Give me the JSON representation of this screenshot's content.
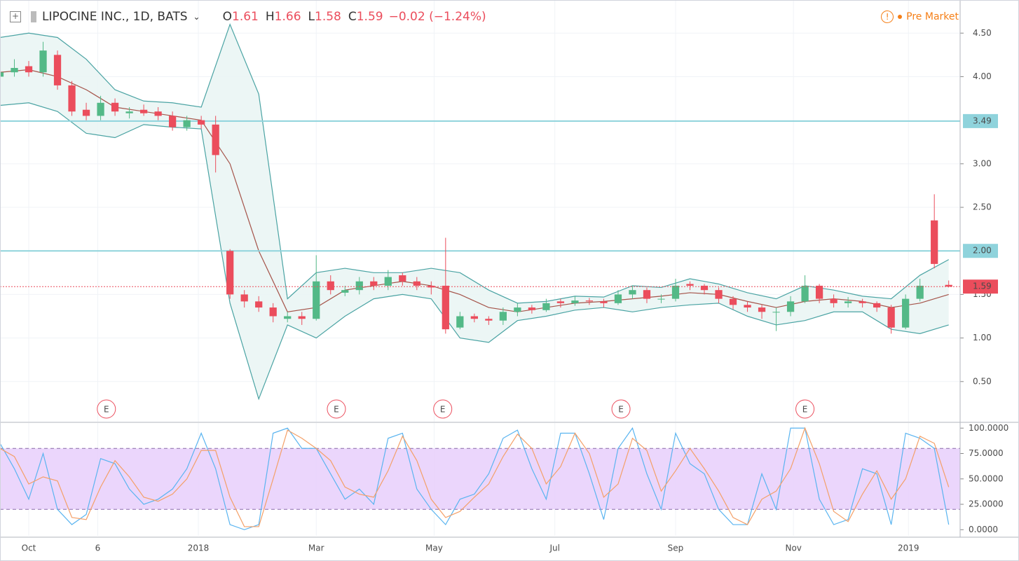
{
  "chart_data": [
    {
      "type": "candlestick",
      "title": "LIPOCINE INC., 1D, BATS",
      "ohlc": [
        {
          "label": "O",
          "value": 1.61
        },
        {
          "label": "H",
          "value": 1.66
        },
        {
          "label": "L",
          "value": 1.58
        },
        {
          "label": "C",
          "value": 1.59
        }
      ],
      "change": "−0.02 (−1.24%)",
      "session": "Pre Market",
      "up_color": "#53b987",
      "down_color": "#eb4d5c",
      "x": [
        0,
        5,
        10,
        15,
        20,
        25,
        30,
        35,
        40,
        45,
        50,
        55,
        60,
        65,
        70,
        75,
        80,
        85,
        90,
        95,
        100,
        105,
        110,
        115,
        120,
        125,
        130,
        135,
        140,
        145,
        150,
        155,
        160,
        165,
        170,
        175,
        180,
        185,
        190,
        195,
        200,
        205,
        210,
        215,
        220,
        225,
        230,
        235,
        240,
        245,
        250,
        255,
        260,
        265,
        270,
        275,
        280,
        285,
        290,
        295,
        300,
        305,
        310,
        315,
        320,
        325,
        330
      ],
      "open": [
        4.0,
        4.05,
        4.12,
        4.05,
        4.25,
        3.9,
        3.62,
        3.55,
        3.7,
        3.58,
        3.62,
        3.6,
        3.55,
        3.42,
        3.5,
        3.45,
        2.0,
        1.5,
        1.42,
        1.35,
        1.22,
        1.25,
        1.22,
        1.65,
        1.52,
        1.55,
        1.65,
        1.6,
        1.72,
        1.65,
        1.6,
        1.6,
        1.12,
        1.25,
        1.22,
        1.2,
        1.3,
        1.35,
        1.32,
        1.42,
        1.4,
        1.43,
        1.42,
        1.4,
        1.5,
        1.55,
        1.45,
        1.45,
        1.62,
        1.6,
        1.55,
        1.45,
        1.38,
        1.35,
        1.3,
        1.3,
        1.42,
        1.6,
        1.45,
        1.4,
        1.42,
        1.4,
        1.35,
        1.12,
        1.45,
        2.35,
        1.61
      ],
      "high": [
        4.15,
        4.2,
        4.18,
        4.4,
        4.3,
        3.95,
        3.7,
        3.78,
        3.75,
        3.65,
        3.68,
        3.65,
        3.6,
        3.55,
        3.55,
        3.55,
        2.02,
        1.55,
        1.48,
        1.4,
        1.3,
        1.3,
        1.95,
        1.72,
        1.6,
        1.7,
        1.7,
        1.78,
        1.75,
        1.7,
        1.65,
        2.15,
        1.3,
        1.28,
        1.25,
        1.35,
        1.4,
        1.38,
        1.45,
        1.45,
        1.48,
        1.46,
        1.45,
        1.55,
        1.6,
        1.58,
        1.5,
        1.68,
        1.65,
        1.62,
        1.58,
        1.48,
        1.42,
        1.38,
        1.35,
        1.48,
        1.72,
        1.62,
        1.5,
        1.47,
        1.45,
        1.42,
        1.38,
        1.5,
        1.68,
        2.65,
        1.66
      ],
      "low": [
        3.95,
        4.0,
        4.0,
        4.0,
        3.85,
        3.55,
        3.5,
        3.5,
        3.55,
        3.52,
        3.55,
        3.5,
        3.38,
        3.38,
        3.4,
        2.9,
        1.45,
        1.35,
        1.3,
        1.18,
        1.18,
        1.15,
        1.2,
        1.5,
        1.48,
        1.5,
        1.55,
        1.55,
        1.6,
        1.55,
        1.5,
        1.05,
        1.1,
        1.18,
        1.15,
        1.15,
        1.25,
        1.28,
        1.3,
        1.35,
        1.37,
        1.38,
        1.35,
        1.38,
        1.45,
        1.4,
        1.4,
        1.42,
        1.55,
        1.5,
        1.4,
        1.33,
        1.3,
        1.22,
        1.08,
        1.25,
        1.4,
        1.4,
        1.35,
        1.35,
        1.35,
        1.3,
        1.05,
        1.1,
        1.42,
        1.8,
        1.58
      ],
      "close": [
        4.05,
        4.1,
        4.05,
        4.3,
        3.9,
        3.6,
        3.55,
        3.7,
        3.6,
        3.6,
        3.58,
        3.55,
        3.42,
        3.5,
        3.45,
        3.1,
        1.5,
        1.42,
        1.35,
        1.25,
        1.25,
        1.22,
        1.65,
        1.55,
        1.55,
        1.65,
        1.6,
        1.7,
        1.65,
        1.6,
        1.58,
        1.1,
        1.25,
        1.22,
        1.2,
        1.3,
        1.35,
        1.32,
        1.4,
        1.4,
        1.43,
        1.42,
        1.4,
        1.5,
        1.55,
        1.45,
        1.45,
        1.6,
        1.6,
        1.55,
        1.45,
        1.38,
        1.35,
        1.3,
        1.3,
        1.42,
        1.6,
        1.45,
        1.4,
        1.42,
        1.4,
        1.35,
        1.12,
        1.45,
        1.6,
        1.85,
        1.59
      ],
      "bollinger": {
        "color": "#4aa3a3",
        "middle_color": "#a5544a",
        "fill": "#eaf5f4",
        "x": [
          0,
          10,
          20,
          30,
          40,
          50,
          60,
          70,
          80,
          90,
          100,
          110,
          120,
          130,
          140,
          150,
          160,
          170,
          180,
          190,
          200,
          210,
          220,
          230,
          240,
          250,
          260,
          270,
          280,
          290,
          300,
          310,
          320,
          330
        ],
        "upper": [
          4.45,
          4.5,
          4.45,
          4.2,
          3.85,
          3.72,
          3.7,
          3.65,
          4.6,
          3.8,
          1.45,
          1.75,
          1.8,
          1.75,
          1.75,
          1.8,
          1.75,
          1.55,
          1.4,
          1.42,
          1.48,
          1.47,
          1.6,
          1.58,
          1.68,
          1.62,
          1.52,
          1.45,
          1.6,
          1.55,
          1.48,
          1.45,
          1.72,
          1.9
        ],
        "middle": [
          4.05,
          4.08,
          4.0,
          3.85,
          3.65,
          3.6,
          3.55,
          3.5,
          3.0,
          2.0,
          1.3,
          1.35,
          1.55,
          1.6,
          1.65,
          1.6,
          1.5,
          1.35,
          1.3,
          1.35,
          1.4,
          1.42,
          1.45,
          1.48,
          1.52,
          1.5,
          1.42,
          1.35,
          1.42,
          1.45,
          1.42,
          1.35,
          1.4,
          1.5
        ],
        "lower": [
          3.67,
          3.7,
          3.6,
          3.35,
          3.3,
          3.45,
          3.42,
          3.4,
          1.4,
          0.3,
          1.15,
          1.0,
          1.25,
          1.45,
          1.5,
          1.45,
          1.0,
          0.95,
          1.2,
          1.25,
          1.32,
          1.35,
          1.3,
          1.35,
          1.38,
          1.4,
          1.25,
          1.15,
          1.2,
          1.3,
          1.3,
          1.1,
          1.05,
          1.15
        ]
      },
      "hlines": [
        {
          "value": 3.49,
          "label": "3.49",
          "color": "#8fd3dc"
        },
        {
          "value": 2.0,
          "label": "2.00",
          "color": "#8fd3dc"
        }
      ],
      "last": {
        "value": 1.59,
        "label": "1.59",
        "color": "#eb4d5c"
      },
      "events": [
        {
          "x": 37,
          "label": "E"
        },
        {
          "x": 117,
          "label": "E"
        },
        {
          "x": 154,
          "label": "E"
        },
        {
          "x": 216,
          "label": "E"
        },
        {
          "x": 280,
          "label": "E"
        }
      ],
      "xlim": [
        0,
        333
      ],
      "ylim": [
        0.04,
        4.88
      ],
      "yticks": [
        {
          "value": 0.5,
          "label": "0.50"
        },
        {
          "value": 1.0,
          "label": "1.00"
        },
        {
          "value": 1.5,
          "label": "1.50"
        },
        {
          "value": 2.5,
          "label": "2.50"
        },
        {
          "value": 3.0,
          "label": "3.00"
        },
        {
          "value": 4.0,
          "label": "4.00"
        },
        {
          "value": 4.5,
          "label": "4.50"
        }
      ],
      "xticks": [
        {
          "value": 10,
          "label": "Oct"
        },
        {
          "value": 34,
          "label": "6"
        },
        {
          "value": 69,
          "label": "2018"
        },
        {
          "value": 110,
          "label": "Mar"
        },
        {
          "value": 151,
          "label": "May"
        },
        {
          "value": 193,
          "label": "Jul"
        },
        {
          "value": 235,
          "label": "Sep"
        },
        {
          "value": 276,
          "label": "Nov"
        },
        {
          "value": 316,
          "label": "2019"
        }
      ],
      "grid": true
    },
    {
      "type": "line",
      "series": [
        {
          "color": "#5ab4f0",
          "values": [
            85,
            60,
            30,
            75,
            20,
            5,
            15,
            70,
            65,
            40,
            25,
            30,
            40,
            60,
            95,
            60,
            5,
            0,
            5,
            95,
            100,
            80,
            80,
            55,
            30,
            40,
            25,
            90,
            95,
            40,
            20,
            5,
            30,
            35,
            55,
            90,
            98,
            60,
            30,
            95,
            95,
            55,
            10,
            80,
            100,
            55,
            20,
            95,
            65,
            55,
            20,
            5,
            5,
            55,
            20,
            100,
            100,
            30,
            5,
            10,
            60,
            55,
            5,
            95,
            90,
            80,
            5
          ]
        },
        {
          "color": "#f4a068",
          "values": [
            80,
            72,
            45,
            52,
            48,
            12,
            10,
            42,
            68,
            52,
            32,
            28,
            35,
            50,
            78,
            78,
            32,
            3,
            3,
            50,
            98,
            90,
            80,
            68,
            42,
            35,
            32,
            58,
            92,
            68,
            30,
            12,
            18,
            32,
            45,
            72,
            94,
            80,
            45,
            62,
            95,
            75,
            32,
            45,
            90,
            78,
            38,
            58,
            80,
            60,
            38,
            12,
            5,
            30,
            38,
            60,
            100,
            65,
            18,
            8,
            35,
            58,
            30,
            50,
            92,
            85,
            42
          ]
        }
      ],
      "upper_band": 80,
      "lower_band": 20,
      "band_color": "#e8cffb",
      "ylim": [
        -6,
        105
      ],
      "yticks": [
        {
          "value": 0,
          "label": "0.0000"
        },
        {
          "value": 25,
          "label": "25.0000"
        },
        {
          "value": 50,
          "label": "50.0000"
        },
        {
          "value": 75,
          "label": "75.0000"
        },
        {
          "value": 100,
          "label": "100.0000"
        }
      ]
    }
  ]
}
